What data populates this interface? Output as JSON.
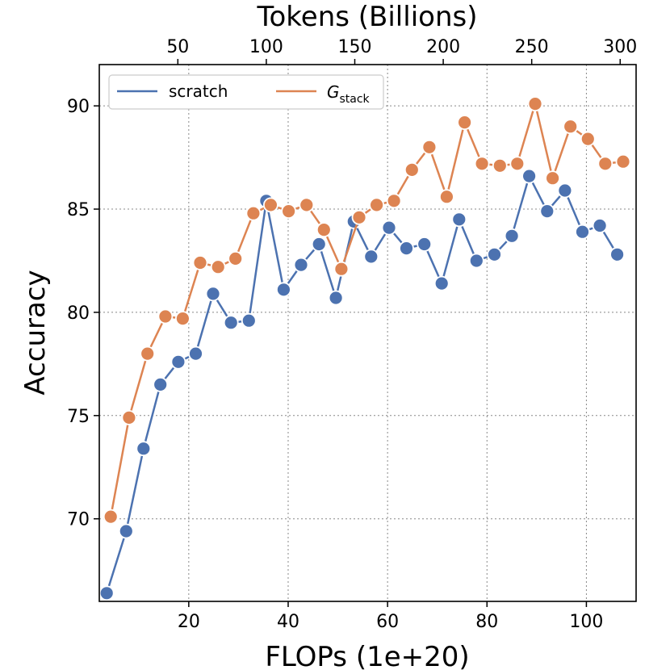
{
  "chart_data": {
    "type": "line",
    "xlabel": "FLOPs (1e+20)",
    "x2label": "Tokens (Billions)",
    "ylabel": "Accuracy",
    "xlim": [
      2,
      110
    ],
    "x2lim": [
      5.6,
      309
    ],
    "ylim": [
      66,
      92
    ],
    "xticks": [
      20,
      40,
      60,
      80,
      100
    ],
    "x2ticks": [
      50,
      100,
      150,
      200,
      250,
      300
    ],
    "yticks": [
      70,
      75,
      80,
      85,
      90
    ],
    "grid": true,
    "legend_position": "top-left",
    "series": [
      {
        "name": "scratch",
        "color": "#4c72b0",
        "x": [
          3.5,
          7.4,
          10.9,
          14.3,
          17.9,
          21.4,
          24.9,
          28.5,
          32.1,
          35.6,
          39.1,
          42.6,
          46.2,
          49.6,
          53.2,
          56.7,
          60.3,
          63.8,
          67.4,
          70.9,
          74.4,
          77.9,
          81.5,
          85.0,
          88.5,
          92.1,
          95.7,
          99.2,
          102.7,
          106.2
        ],
        "y": [
          66.4,
          69.4,
          73.4,
          76.5,
          77.6,
          78.0,
          80.9,
          79.5,
          79.6,
          85.4,
          81.1,
          82.3,
          83.3,
          80.7,
          84.4,
          82.7,
          84.1,
          83.1,
          83.3,
          81.4,
          84.5,
          82.5,
          82.8,
          83.7,
          86.6,
          84.9,
          85.9,
          83.9,
          84.2,
          82.8
        ]
      },
      {
        "name": "G_stack",
        "color": "#dd8452",
        "x": [
          4.3,
          8.0,
          11.7,
          15.3,
          18.8,
          22.3,
          25.9,
          29.4,
          33.0,
          36.5,
          40.1,
          43.7,
          47.2,
          50.7,
          54.3,
          57.8,
          61.3,
          64.9,
          68.4,
          71.9,
          75.5,
          79.0,
          82.6,
          86.1,
          89.7,
          93.2,
          96.8,
          100.3,
          103.8,
          107.4
        ],
        "y": [
          70.1,
          74.9,
          78.0,
          79.8,
          79.7,
          82.4,
          82.2,
          82.6,
          84.8,
          85.2,
          84.9,
          85.2,
          84.0,
          82.1,
          84.6,
          85.2,
          85.4,
          86.9,
          88.0,
          85.6,
          89.2,
          87.2,
          87.1,
          87.2,
          90.1,
          86.5,
          89.0,
          88.4,
          87.2,
          87.3
        ]
      }
    ]
  },
  "legend": {
    "scratch_label": "scratch",
    "gstack_main": "G",
    "gstack_sub": "stack"
  }
}
